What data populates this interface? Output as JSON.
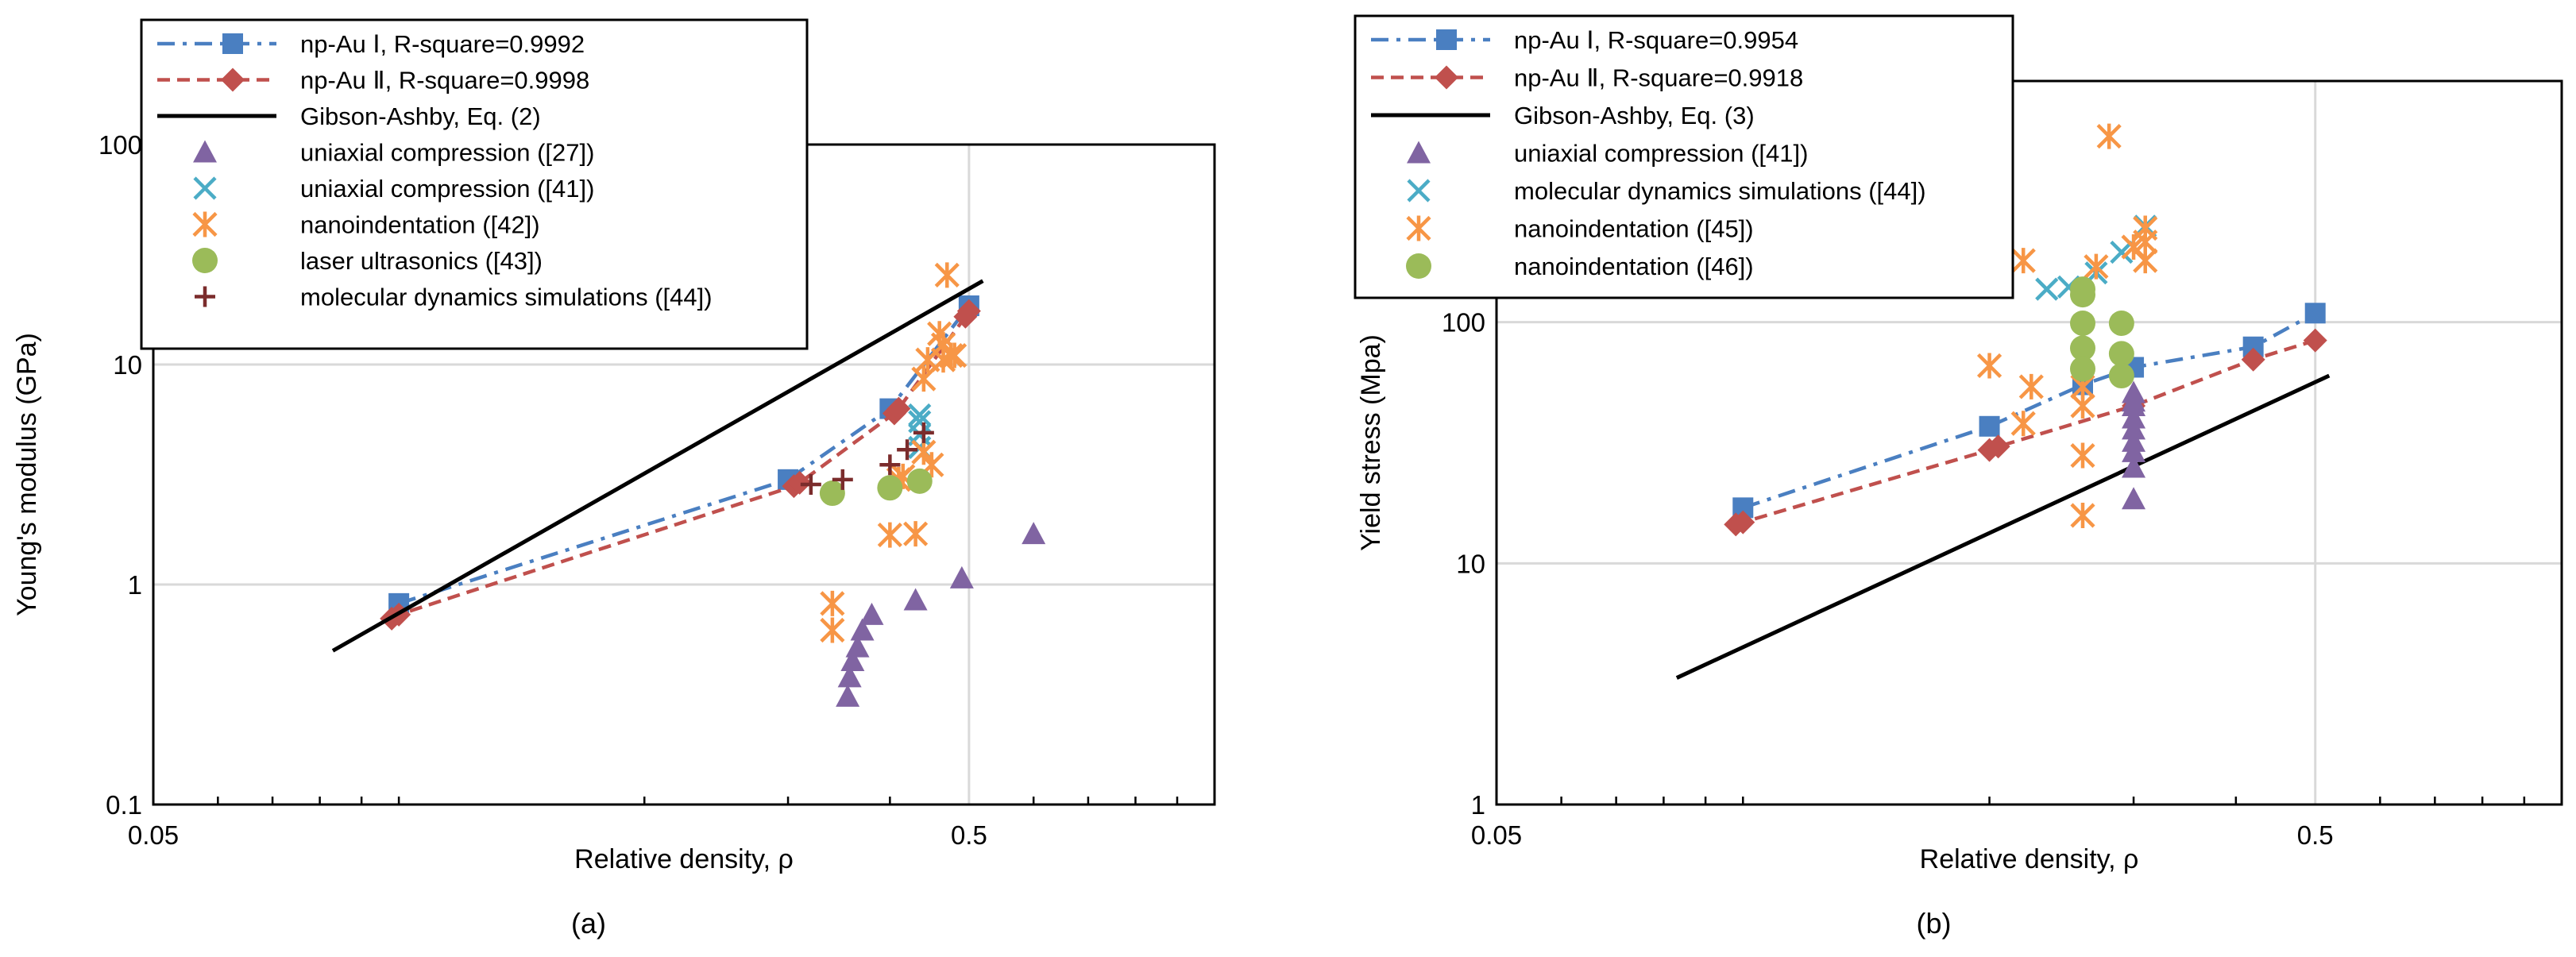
{
  "colors": {
    "npAu1": "#4a7fc1",
    "npAu2": "#c0504d",
    "gibson": "#000000",
    "triangle": "#8064a2",
    "xcross": "#4bacc6",
    "star": "#f79646",
    "circle": "#9bbb59",
    "plus": "#7b2c2c",
    "grid": "#d9d9d9"
  },
  "chart_data": [
    {
      "type": "scatter",
      "caption": "(a)",
      "xlabel": "Relative density, ρ",
      "ylabel": "Young's  modulus (GPa)",
      "xscale": "log",
      "yscale": "log",
      "xlim": [
        0.05,
        1.0
      ],
      "ylim": [
        0.1,
        100
      ],
      "xticks": [
        {
          "v": 0.05,
          "label": "0.05"
        },
        {
          "v": 0.5,
          "label": "0.5"
        }
      ],
      "yticks": [
        {
          "v": 0.1,
          "label": "0.1"
        },
        {
          "v": 1,
          "label": "1"
        },
        {
          "v": 10,
          "label": "10"
        },
        {
          "v": 100,
          "label": "100"
        }
      ],
      "legend_position": "top-left",
      "series": [
        {
          "name": "np-Au Ⅰ, R-square=0.9992",
          "kind": "line-marker",
          "marker": "square",
          "dash": "dashdot",
          "color": "#4a7fc1",
          "x": [
            0.1,
            0.3,
            0.4,
            0.5
          ],
          "y": [
            0.82,
            3.0,
            6.3,
            18.5
          ]
        },
        {
          "name": "np-Au Ⅱ, R-square=0.9998",
          "kind": "line-marker",
          "marker": "diamond",
          "dash": "dash",
          "color": "#c0504d",
          "x": [
            0.098,
            0.1,
            0.305,
            0.31,
            0.405,
            0.41,
            0.495,
            0.5
          ],
          "y": [
            0.7,
            0.73,
            2.8,
            2.9,
            6.0,
            6.3,
            16.5,
            17.5
          ]
        },
        {
          "name": "Gibson-Ashby, Eq. (2)",
          "kind": "line",
          "color": "#000000",
          "x": [
            0.083,
            0.52
          ],
          "y": [
            0.5,
            24
          ]
        },
        {
          "name": "uniaxial compression ([27])",
          "kind": "scatter",
          "marker": "triangle",
          "color": "#8064a2",
          "x": [
            0.355,
            0.357,
            0.36,
            0.365,
            0.37,
            0.38,
            0.43,
            0.49,
            0.6
          ],
          "y": [
            0.31,
            0.38,
            0.45,
            0.52,
            0.62,
            0.73,
            0.85,
            1.07,
            1.7
          ]
        },
        {
          "name": "uniaxial compression ([41])",
          "kind": "scatter",
          "marker": "x",
          "color": "#4bacc6",
          "x": [
            0.435,
            0.435,
            0.435,
            0.435
          ],
          "y": [
            4.2,
            4.8,
            5.5,
            5.9
          ]
        },
        {
          "name": "nanoindentation ([42])",
          "kind": "scatter",
          "marker": "star",
          "color": "#f79646",
          "x": [
            0.34,
            0.34,
            0.4,
            0.41,
            0.415,
            0.43,
            0.44,
            0.44,
            0.445,
            0.45,
            0.46,
            0.465,
            0.465,
            0.47,
            0.475,
            0.48
          ],
          "y": [
            0.82,
            0.62,
            1.68,
            3.0,
            3.1,
            1.7,
            4.0,
            8.6,
            10.5,
            3.5,
            13.8,
            12.3,
            10.5,
            25.5,
            11.0,
            11.0
          ]
        },
        {
          "name": "laser ultrasonics ([43])",
          "kind": "scatter",
          "marker": "circle",
          "color": "#9bbb59",
          "x": [
            0.34,
            0.4,
            0.435
          ],
          "y": [
            2.6,
            2.75,
            2.95
          ]
        },
        {
          "name": "molecular dynamics simulations ([44])",
          "kind": "scatter",
          "marker": "plus",
          "color": "#7b2c2c",
          "x": [
            0.32,
            0.35,
            0.4,
            0.42,
            0.44
          ],
          "y": [
            2.85,
            3.0,
            3.5,
            4.1,
            4.9
          ]
        }
      ]
    },
    {
      "type": "scatter",
      "caption": "(b)",
      "xlabel": "Relative density, ρ",
      "ylabel": "Yield stress  (Mpa)",
      "xscale": "log",
      "yscale": "log",
      "xlim": [
        0.05,
        1.0
      ],
      "ylim": [
        1,
        1000
      ],
      "xticks": [
        {
          "v": 0.05,
          "label": "0.05"
        },
        {
          "v": 0.5,
          "label": "0.5"
        }
      ],
      "yticks": [
        {
          "v": 1,
          "label": "1"
        },
        {
          "v": 10,
          "label": "10"
        },
        {
          "v": 100,
          "label": "100"
        }
      ],
      "legend_position": "top-left",
      "series": [
        {
          "name": "np-Au Ⅰ, R-square=0.9954",
          "kind": "line-marker",
          "marker": "square",
          "dash": "dashdot",
          "color": "#4a7fc1",
          "x": [
            0.1,
            0.2,
            0.26,
            0.3,
            0.42,
            0.5
          ],
          "y": [
            17,
            37,
            55,
            65,
            79,
            109
          ]
        },
        {
          "name": "np-Au Ⅱ, R-square=0.9918",
          "kind": "line-marker",
          "marker": "diamond",
          "dash": "dash",
          "color": "#c0504d",
          "x": [
            0.098,
            0.1,
            0.2,
            0.205,
            0.3,
            0.42,
            0.5
          ],
          "y": [
            14.5,
            14.8,
            29.5,
            30.5,
            45,
            70,
            84
          ]
        },
        {
          "name": "Gibson-Ashby, Eq. (3)",
          "kind": "line",
          "color": "#000000",
          "x": [
            0.083,
            0.52
          ],
          "y": [
            3.35,
            60
          ]
        },
        {
          "name": "uniaxial compression ([41])",
          "kind": "scatter",
          "marker": "triangle",
          "color": "#8064a2",
          "x": [
            0.3,
            0.3,
            0.3,
            0.3,
            0.3,
            0.3,
            0.3,
            0.3,
            0.3
          ],
          "y": [
            18.5,
            25,
            29,
            32,
            36,
            40,
            45,
            47,
            51
          ]
        },
        {
          "name": "molecular dynamics simulations ([44])",
          "kind": "scatter",
          "marker": "x",
          "color": "#4bacc6",
          "x": [
            0.235,
            0.25,
            0.27,
            0.29,
            0.31
          ],
          "y": [
            137,
            140,
            160,
            195,
            250
          ]
        },
        {
          "name": "nanoindentation ([45])",
          "kind": "scatter",
          "marker": "star",
          "color": "#f79646",
          "x": [
            0.2,
            0.22,
            0.225,
            0.22,
            0.26,
            0.26,
            0.26,
            0.26,
            0.27,
            0.28,
            0.3,
            0.31,
            0.31,
            0.31
          ],
          "y": [
            66,
            38,
            54,
            180,
            28,
            15.8,
            45,
            54,
            170,
            590,
            205,
            245,
            215,
            180
          ]
        },
        {
          "name": "nanoindentation ([46])",
          "kind": "scatter",
          "marker": "circle",
          "color": "#9bbb59",
          "x": [
            0.26,
            0.26,
            0.26,
            0.26,
            0.26,
            0.29,
            0.29,
            0.29
          ],
          "y": [
            130,
            99,
            78,
            64,
            137,
            99,
            74,
            60
          ]
        }
      ]
    }
  ]
}
